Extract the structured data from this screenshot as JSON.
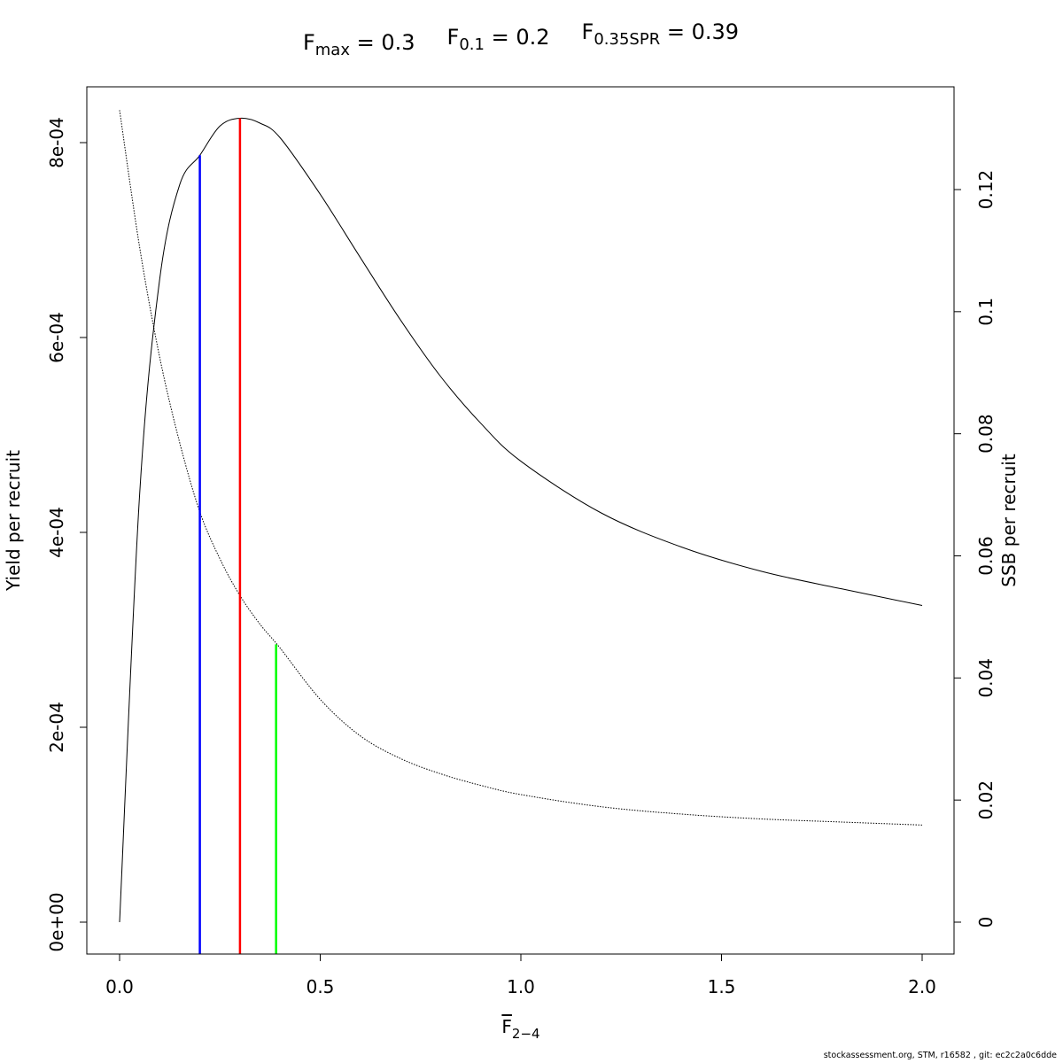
{
  "chart_data": {
    "type": "line",
    "title_parts": [
      {
        "main": "F",
        "sub": "max",
        "value": "= 0.3"
      },
      {
        "main": "F",
        "sub": "0.1",
        "value": "= 0.2"
      },
      {
        "main": "F",
        "sub": "0.35SPR",
        "value": "= 0.39"
      }
    ],
    "xlabel": {
      "main": "F",
      "sub": "2−4"
    },
    "ylabel_left": "Yield per recruit",
    "ylabel_right": "SSB per recruit",
    "xlim": [
      0,
      2
    ],
    "ylim_left": [
      0,
      0.00085
    ],
    "ylim_right": [
      0,
      0.133
    ],
    "x_ticks": [
      0,
      0.5,
      1,
      1.5,
      2
    ],
    "x_tick_labels": [
      "0.0",
      "0.5",
      "1.0",
      "1.5",
      "2.0"
    ],
    "y_left_ticks": [
      0,
      0.0002,
      0.0004,
      0.0006,
      0.0008
    ],
    "y_left_tick_labels": [
      "0e+00",
      "2e-04",
      "4e-04",
      "6e-04",
      "8e-04"
    ],
    "y_right_ticks": [
      0,
      0.02,
      0.04,
      0.06,
      0.08,
      0.1,
      0.12
    ],
    "y_right_tick_labels": [
      "0",
      "0.02",
      "0.04",
      "0.06",
      "0.08",
      "0.1",
      "0.12"
    ],
    "grid": false,
    "series": [
      {
        "axis": "left",
        "style": "solid",
        "color": "#000000",
        "x": [
          0,
          0.05,
          0.1,
          0.15,
          0.2,
          0.25,
          0.3,
          0.35,
          0.4,
          0.5,
          0.6,
          0.7,
          0.8,
          0.9,
          1.0,
          1.2,
          1.4,
          1.6,
          1.8,
          2.0
        ],
        "y": [
          0,
          0.00044,
          0.00066,
          0.000757,
          0.000787,
          0.000817,
          0.000825,
          0.00082,
          0.000805,
          0.000747,
          0.000682,
          0.000618,
          0.00056,
          0.000512,
          0.000473,
          0.00042,
          0.000385,
          0.00036,
          0.000342,
          0.000325
        ]
      },
      {
        "axis": "right",
        "style": "dotted",
        "color": "#000000",
        "x": [
          0,
          0.05,
          0.1,
          0.15,
          0.2,
          0.25,
          0.3,
          0.35,
          0.4,
          0.5,
          0.6,
          0.7,
          0.8,
          0.9,
          1.0,
          1.2,
          1.4,
          1.6,
          1.8,
          2.0
        ],
        "y": [
          0.133,
          0.1105,
          0.0925,
          0.0785,
          0.0672,
          0.0595,
          0.0535,
          0.0488,
          0.0449,
          0.0365,
          0.0305,
          0.0268,
          0.0243,
          0.0224,
          0.0209,
          0.0189,
          0.0177,
          0.0169,
          0.0164,
          0.0159
        ]
      }
    ],
    "reference_lines": [
      {
        "name": "F0.1",
        "x": 0.2,
        "y_left": 0.000787,
        "color": "#0000ff"
      },
      {
        "name": "Fmax",
        "x": 0.3,
        "y_left": 0.000825,
        "color": "#ff0000"
      },
      {
        "name": "F0.35SPR",
        "x": 0.39,
        "y_right": 0.0455,
        "color": "#00ff00"
      }
    ]
  },
  "footer": "stockassessment.org, STM, r16582 , git: ec2c2a0c6dde"
}
